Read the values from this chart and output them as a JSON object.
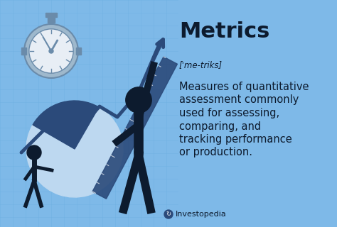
{
  "bg_color": "#7EB9E8",
  "grid_color": "#6CAEE0",
  "title": "Metrics",
  "pronunciation": "[ˈme-triks]",
  "definition_lines": [
    "Measures of quantitative",
    "assessment commonly",
    "used for assessing,",
    "comparing, and",
    "tracking performance",
    "or production."
  ],
  "brand": "Investopedia",
  "title_fontsize": 22,
  "pronun_fontsize": 8.5,
  "def_fontsize": 10.5,
  "brand_fontsize": 8,
  "text_color": "#0d1b2e",
  "dark_blue": "#2B4A7A",
  "mid_blue": "#3A5F9A",
  "pie_light": "#BDD8F0",
  "pie_dark": "#2B4A7A",
  "figure_color": "#0d1b2e",
  "clock_face": "#E8EEF5",
  "clock_body": "#9EB8CC",
  "clock_detail": "#6A8BAA"
}
